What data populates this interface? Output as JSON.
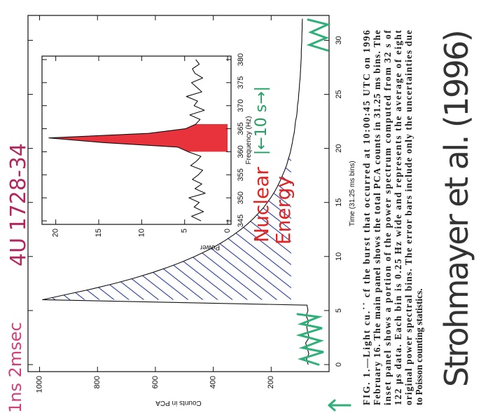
{
  "chart_data": [
    {
      "type": "line",
      "x_label": "Time (31.25 ms bins)",
      "y_label": "Counts in PCA",
      "x": [
        0,
        0.5,
        1,
        1.5,
        2,
        2.5,
        3,
        3.5,
        4,
        4.5,
        5,
        5.5,
        6,
        6.5,
        7,
        7.5,
        8,
        8.5,
        9,
        9.5,
        10,
        10.5,
        11,
        11.5,
        12,
        12.5,
        13,
        13.5,
        14,
        14.5,
        15,
        15.5,
        16,
        16.5,
        17,
        17.5,
        18,
        18.5,
        19,
        19.5,
        20,
        20.5,
        21,
        21.5,
        22,
        22.5,
        23,
        23.5,
        24,
        24.5,
        25,
        25.5,
        26,
        26.5,
        27,
        27.5,
        28,
        28.5,
        29,
        29.5,
        30,
        30.5,
        31,
        31.5,
        32
      ],
      "values": [
        72,
        78,
        70,
        75,
        81,
        69,
        74,
        77,
        71,
        79,
        73,
        76,
        990,
        905,
        819,
        742,
        673,
        612,
        557,
        508,
        464,
        425,
        389,
        358,
        330,
        305,
        282,
        262,
        244,
        227,
        213,
        200,
        188,
        178,
        169,
        161,
        153,
        146,
        141,
        135,
        131,
        127,
        124,
        120,
        118,
        116,
        112,
        110,
        109,
        106,
        105,
        103,
        102,
        100,
        99,
        98,
        97,
        96,
        96,
        95,
        94,
        94,
        93,
        93,
        92
      ],
      "color": "#111111",
      "xlim": [
        -0.65,
        32.3
      ],
      "ylim": [
        0,
        1040
      ],
      "xticks": [
        0,
        5,
        10,
        15,
        20,
        25,
        30
      ],
      "yticks": [
        200,
        400,
        600,
        800,
        1000
      ],
      "hatch_xlim": [
        6,
        20
      ],
      "hatch_color": "#2b3b9c",
      "annotations": [
        "4U 1728-34",
        "Nuclear",
        "Energy",
        "|←10 s→|",
        "Strohmayer et al. (1996)",
        "1ns 2msec"
      ]
    },
    {
      "type": "line",
      "x_label": "Frequency (Hz)",
      "y_label": "Power",
      "x": [
        345,
        346,
        347,
        348,
        349,
        350,
        351,
        352,
        353,
        354,
        355,
        356,
        357,
        358,
        359,
        360,
        361,
        362,
        363,
        364,
        365,
        366,
        367,
        368,
        369,
        370,
        371,
        372,
        373,
        374,
        375,
        376,
        377,
        378,
        379,
        380
      ],
      "values": [
        3.1,
        4.2,
        2.8,
        3.9,
        3.3,
        4.5,
        2.6,
        3.8,
        3.0,
        4.1,
        3.4,
        2.9,
        4.3,
        3.6,
        3.1,
        4.6,
        5.8,
        14.5,
        20.8,
        9.2,
        4.9,
        3.7,
        3.2,
        4.4,
        2.7,
        3.9,
        3.5,
        4.8,
        3.0,
        3.6,
        4.2,
        2.9,
        3.8,
        4.1,
        3.3,
        3.7
      ],
      "color": "#111111",
      "xlim": [
        344.24,
        380.76
      ],
      "ylim": [
        -0.4,
        21.6
      ],
      "xticks": [
        345,
        350,
        355,
        360,
        365,
        370,
        375,
        380
      ],
      "yticks": [
        0,
        5,
        10,
        15,
        20
      ],
      "highlight_xlim": [
        360,
        366
      ],
      "highlight_color": "#e8323c"
    }
  ],
  "caption": [
    "FIG. 1.—Light cu.˙˙ cf the burst that occurred at 10:00:45 UTC on 1996",
    "February 16. The main panel shows the total PCA counts in 31.25 ms bins. The",
    "inset panel shows a portion of the power spectrum computed from 32 s of",
    "122 μs data. Each bin is 0.25 Hz wide and represents the average of eight",
    "original power spectral bins. The error bars include only the uncertainties due",
    "to Poisson counting statistics."
  ]
}
